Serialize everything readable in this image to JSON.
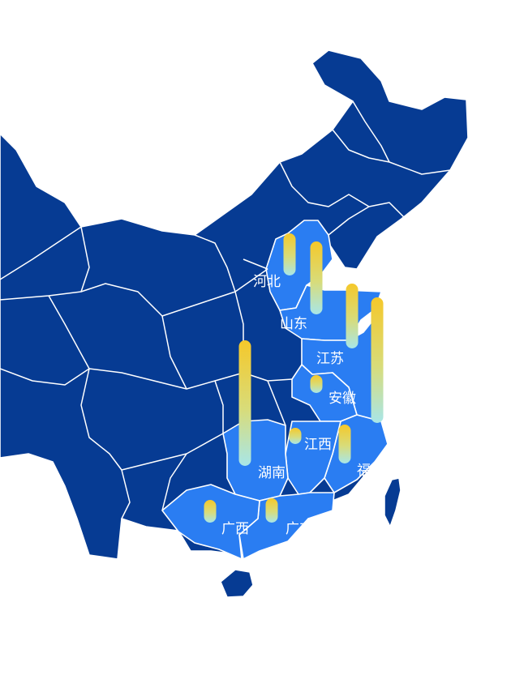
{
  "map": {
    "colors": {
      "base": "#063b93",
      "highlight": "#2a7df2",
      "border": "#ffffff",
      "bar_top": "#f5c82a",
      "bar_bottom": "#a8e6e8"
    },
    "provinces": [
      {
        "key": "hebei",
        "label": "河北"
      },
      {
        "key": "shandong",
        "label": "山东"
      },
      {
        "key": "jiangsu",
        "label": "江苏"
      },
      {
        "key": "anhui",
        "label": "安徽"
      },
      {
        "key": "jiangxi",
        "label": "江西"
      },
      {
        "key": "hunan",
        "label": "湖南"
      },
      {
        "key": "fujian",
        "label": "福"
      },
      {
        "key": "guangxi",
        "label": "广西"
      },
      {
        "key": "guangdong",
        "label": "广东"
      }
    ],
    "bars": [
      {
        "key": "beijing",
        "value": 52
      },
      {
        "key": "tianjin",
        "value": 90
      },
      {
        "key": "jiangsu-north",
        "value": 80
      },
      {
        "key": "shanghai",
        "value": 155
      },
      {
        "key": "hubei",
        "value": 155
      },
      {
        "key": "anhui",
        "value": 22
      },
      {
        "key": "jiangxi",
        "value": 20
      },
      {
        "key": "fujian",
        "value": 48
      },
      {
        "key": "guangxi",
        "value": 28
      },
      {
        "key": "guangdong",
        "value": 30
      }
    ]
  }
}
